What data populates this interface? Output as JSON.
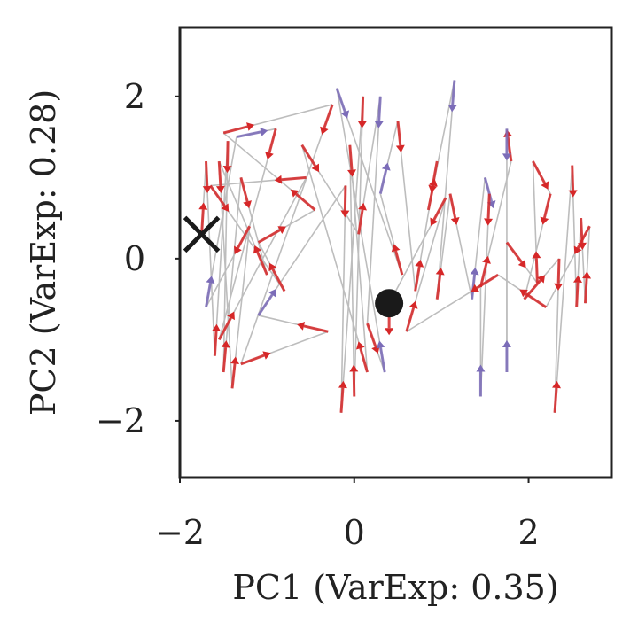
{
  "chart_data": {
    "type": "scatter",
    "subtype": "pca-trajectory",
    "xlabel": "PC1 (VarExp: 0.35)",
    "ylabel": "PC2 (VarExp: 0.28)",
    "xlim": [
      -2.0,
      2.95
    ],
    "ylim": [
      -2.7,
      2.85
    ],
    "xticks": [
      -2,
      0,
      2
    ],
    "yticks": [
      -2,
      0,
      2
    ],
    "xtick_labels": [
      "−2",
      "0",
      "2"
    ],
    "ytick_labels": [
      "−2",
      "0",
      "2"
    ],
    "grid": false,
    "colors": {
      "path": "#bdbdbd",
      "red": "#d62728",
      "purple": "#7b6cb8",
      "marker": "#1a1a1a",
      "frame": "#222222"
    },
    "start_marker": {
      "symbol": "x",
      "x": -1.75,
      "y": 0.3
    },
    "end_marker": {
      "symbol": "circle",
      "x": 0.4,
      "y": -0.55
    },
    "points": [
      {
        "x": -1.75,
        "y": 0.3,
        "c": "red"
      },
      {
        "x": -1.7,
        "y": 1.2,
        "c": "red"
      },
      {
        "x": -1.6,
        "y": -1.2,
        "c": "red"
      },
      {
        "x": -1.45,
        "y": 1.45,
        "c": "red"
      },
      {
        "x": -1.5,
        "y": -1.4,
        "c": "red"
      },
      {
        "x": -1.3,
        "y": 1.0,
        "c": "red"
      },
      {
        "x": -1.0,
        "y": -0.2,
        "c": "red"
      },
      {
        "x": -1.55,
        "y": 1.2,
        "c": "red"
      },
      {
        "x": -1.4,
        "y": -1.6,
        "c": "red"
      },
      {
        "x": -1.2,
        "y": 0.4,
        "c": "red"
      },
      {
        "x": -1.7,
        "y": -0.6,
        "c": "purple"
      },
      {
        "x": -1.35,
        "y": 1.5,
        "c": "purple"
      },
      {
        "x": -0.9,
        "y": 1.6,
        "c": "red"
      },
      {
        "x": -1.55,
        "y": -1.0,
        "c": "red"
      },
      {
        "x": -0.55,
        "y": 1.0,
        "c": "red"
      },
      {
        "x": -1.65,
        "y": 0.9,
        "c": "red"
      },
      {
        "x": -0.8,
        "y": -0.4,
        "c": "red"
      },
      {
        "x": -1.1,
        "y": 0.2,
        "c": "red"
      },
      {
        "x": -0.45,
        "y": 0.6,
        "c": "red"
      },
      {
        "x": -1.5,
        "y": 1.55,
        "c": "red"
      },
      {
        "x": -0.25,
        "y": 1.9,
        "c": "red"
      },
      {
        "x": -1.3,
        "y": -1.3,
        "c": "red"
      },
      {
        "x": -0.3,
        "y": -0.9,
        "c": "red"
      },
      {
        "x": -1.1,
        "y": -0.7,
        "c": "purple"
      },
      {
        "x": -0.1,
        "y": 0.9,
        "c": "red"
      },
      {
        "x": -0.15,
        "y": -1.9,
        "c": "red"
      },
      {
        "x": 0.1,
        "y": 2.0,
        "c": "red"
      },
      {
        "x": 0.0,
        "y": -1.7,
        "c": "red"
      },
      {
        "x": -0.05,
        "y": 1.4,
        "c": "red"
      },
      {
        "x": 0.15,
        "y": -1.4,
        "c": "red"
      },
      {
        "x": -0.6,
        "y": 1.4,
        "c": "red"
      },
      {
        "x": 0.05,
        "y": 0.3,
        "c": "red"
      },
      {
        "x": 0.3,
        "y": 2.0,
        "c": "purple"
      },
      {
        "x": 0.15,
        "y": -0.8,
        "c": "red"
      },
      {
        "x": 0.35,
        "y": -1.4,
        "c": "purple"
      },
      {
        "x": -0.2,
        "y": 2.1,
        "c": "purple"
      },
      {
        "x": 0.55,
        "y": -0.2,
        "c": "red"
      },
      {
        "x": 0.3,
        "y": 0.8,
        "c": "purple"
      },
      {
        "x": 0.5,
        "y": 1.7,
        "c": "red"
      },
      {
        "x": 0.7,
        "y": -0.4,
        "c": "red"
      },
      {
        "x": 0.95,
        "y": 1.2,
        "c": "red"
      },
      {
        "x": 0.85,
        "y": 0.6,
        "c": "red"
      },
      {
        "x": 1.15,
        "y": 2.2,
        "c": "purple"
      },
      {
        "x": 0.95,
        "y": -0.5,
        "c": "red"
      },
      {
        "x": 1.1,
        "y": 0.8,
        "c": "red"
      },
      {
        "x": 1.35,
        "y": -0.5,
        "c": "purple"
      },
      {
        "x": 1.5,
        "y": 1.0,
        "c": "purple"
      },
      {
        "x": 1.55,
        "y": 0.8,
        "c": "red"
      },
      {
        "x": 1.45,
        "y": -1.7,
        "c": "purple"
      },
      {
        "x": 1.45,
        "y": -0.35,
        "c": "red"
      },
      {
        "x": 1.8,
        "y": 1.2,
        "c": "red"
      },
      {
        "x": 1.75,
        "y": 1.6,
        "c": "purple"
      },
      {
        "x": 1.75,
        "y": -1.4,
        "c": "purple"
      },
      {
        "x": 1.75,
        "y": 0.2,
        "c": "red"
      },
      {
        "x": 2.1,
        "y": -0.3,
        "c": "red"
      },
      {
        "x": 2.05,
        "y": 1.2,
        "c": "red"
      },
      {
        "x": 2.25,
        "y": 0.8,
        "c": "red"
      },
      {
        "x": 1.95,
        "y": -0.5,
        "c": "red"
      },
      {
        "x": 2.35,
        "y": 0.0,
        "c": "red"
      },
      {
        "x": 2.3,
        "y": -1.9,
        "c": "red"
      },
      {
        "x": 2.5,
        "y": 1.15,
        "c": "red"
      },
      {
        "x": 2.55,
        "y": -0.6,
        "c": "red"
      },
      {
        "x": 2.6,
        "y": 0.5,
        "c": "red"
      },
      {
        "x": 2.65,
        "y": -0.55,
        "c": "red"
      },
      {
        "x": 2.7,
        "y": 0.4,
        "c": "red"
      },
      {
        "x": 2.2,
        "y": -0.6,
        "c": "red"
      },
      {
        "x": 1.65,
        "y": -0.2,
        "c": "red"
      },
      {
        "x": 0.6,
        "y": -0.9,
        "c": "red"
      },
      {
        "x": 1.05,
        "y": 0.75,
        "c": "red"
      },
      {
        "x": 0.4,
        "y": -0.55,
        "c": "red"
      }
    ]
  }
}
